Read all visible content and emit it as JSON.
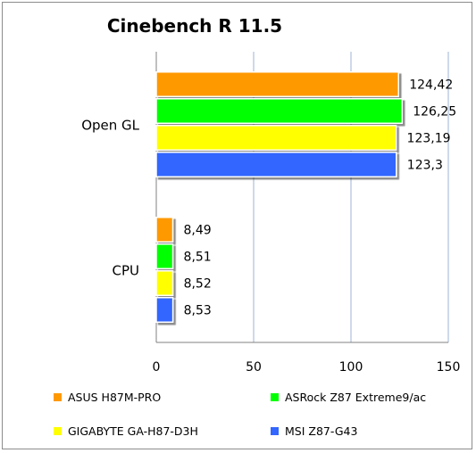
{
  "chart_data": {
    "type": "bar",
    "orientation": "horizontal",
    "title": "Cinebench R 11.5",
    "categories": [
      "Open GL",
      "CPU"
    ],
    "series": [
      {
        "name": "ASUS H87M-PRO",
        "color": "#ff9900",
        "values": [
          124.42,
          8.49
        ],
        "labels": [
          "124,42",
          "8,49"
        ]
      },
      {
        "name": "ASRock Z87 Extreme9/ac",
        "color": "#00ff00",
        "values": [
          126.25,
          8.51
        ],
        "labels": [
          "126,25",
          "8,51"
        ]
      },
      {
        "name": "GIGABYTE GA-H87-D3H",
        "color": "#ffff00",
        "values": [
          123.19,
          8.52
        ],
        "labels": [
          "123,19",
          "8,52"
        ]
      },
      {
        "name": "MSI Z87-G43",
        "color": "#3366ff",
        "values": [
          123.3,
          8.53
        ],
        "labels": [
          "123,3",
          "8,53"
        ]
      }
    ],
    "xlim": [
      0,
      150
    ],
    "xticks": [
      0,
      50,
      100,
      150
    ],
    "grid": true,
    "legend_position": "bottom"
  }
}
